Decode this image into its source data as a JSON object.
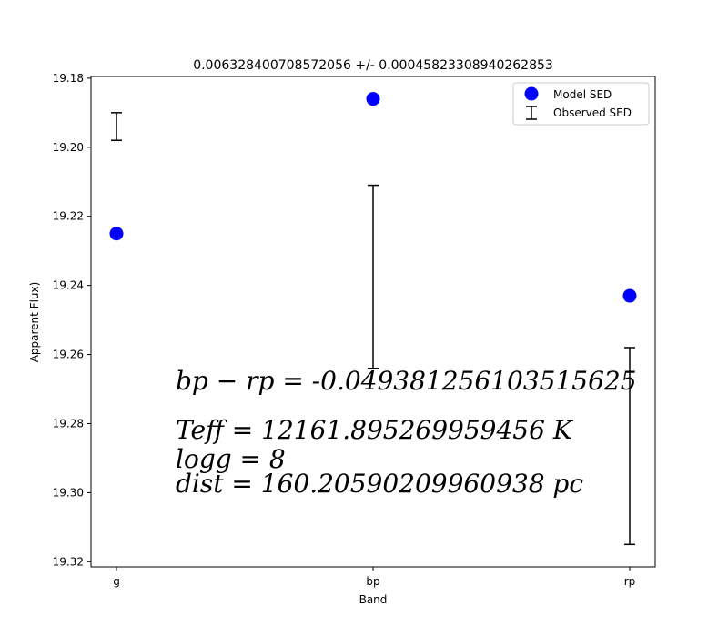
{
  "chart_data": {
    "type": "scatter",
    "title": "0.006328400708572056 +/- 0.00045823308940262853",
    "xlabel": "Band",
    "ylabel": "Apparent Flux)",
    "categories": [
      "g",
      "bp",
      "rp"
    ],
    "ylim": [
      19.3215,
      19.1795
    ],
    "y_inverted": true,
    "yticks": [
      "19.18",
      "19.20",
      "19.22",
      "19.24",
      "19.26",
      "19.28",
      "19.30",
      "19.32"
    ],
    "ytick_values": [
      19.18,
      19.2,
      19.22,
      19.24,
      19.26,
      19.28,
      19.3,
      19.32
    ],
    "series": [
      {
        "name": "Model SED",
        "kind": "points",
        "color": "#0000ff",
        "values": [
          19.225,
          19.186,
          19.243
        ]
      },
      {
        "name": "Observed SED",
        "kind": "errorbar",
        "color": "#000000",
        "low": [
          19.19,
          19.211,
          19.258
        ],
        "high": [
          19.198,
          19.264,
          19.315
        ]
      }
    ],
    "legend_position": "top-right",
    "grid": false,
    "annotations": [
      "bp − rp = -0.0493812561035156​25",
      "Teff = 12161.895269959456 K",
      "logg = 8",
      "dist = 160.20590209960938 pc"
    ]
  }
}
